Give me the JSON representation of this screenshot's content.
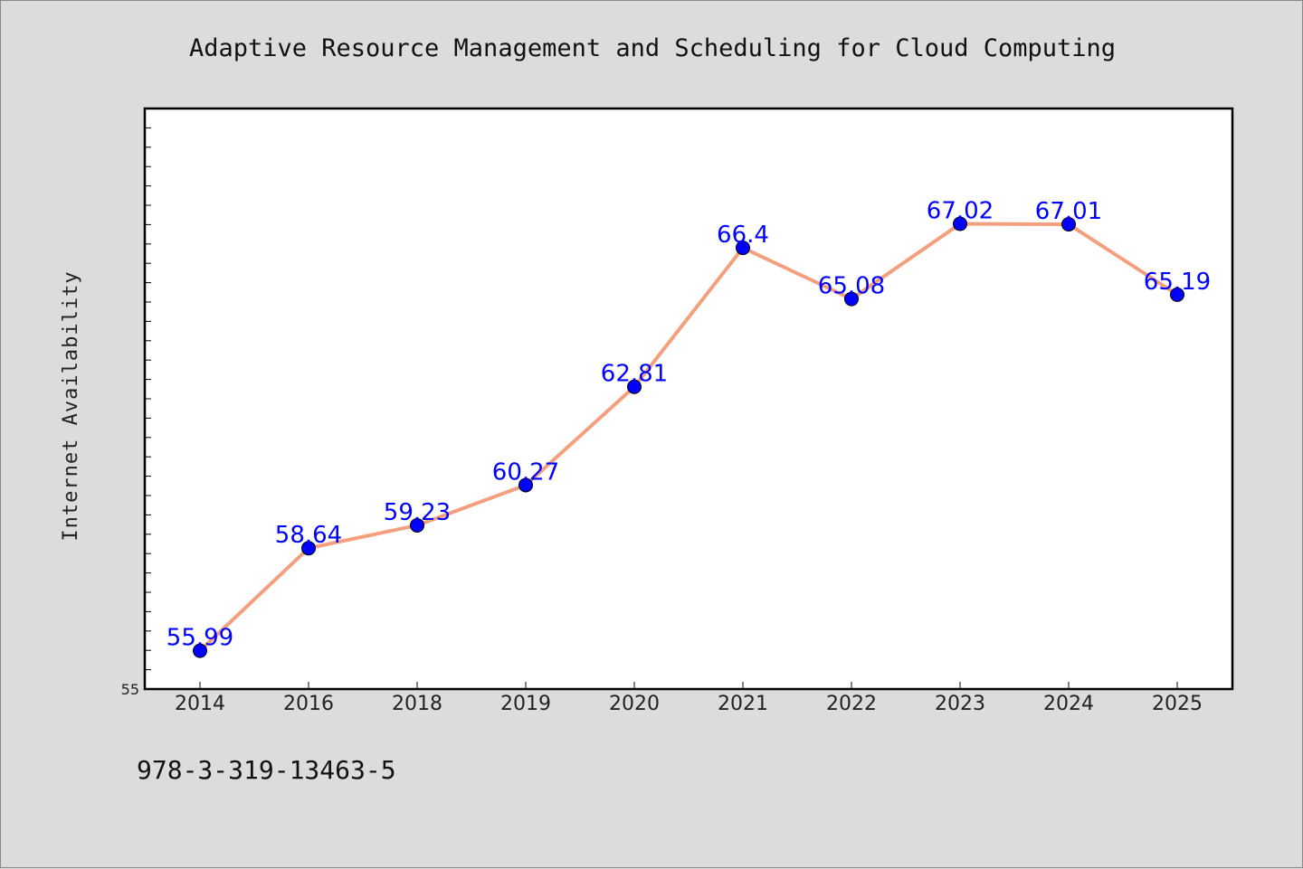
{
  "chart_data": {
    "type": "line",
    "title": "Adaptive Resource Management and Scheduling for Cloud Computing",
    "ylabel": "Internet Availability",
    "xlabel": "",
    "categories": [
      "2014",
      "2016",
      "2018",
      "2019",
      "2020",
      "2021",
      "2022",
      "2023",
      "2024",
      "2025"
    ],
    "series": [
      {
        "values": [
          55.99,
          58.64,
          59.23,
          60.27,
          62.81,
          66.4,
          65.08,
          67.02,
          67.01,
          65.19
        ],
        "data_labels": [
          "55.99",
          "58.64",
          "59.23",
          "60.27",
          "62.81",
          "66.4",
          "65.08",
          "67.02",
          "67.01",
          "65.19"
        ],
        "line_color": "#f4a07e",
        "marker_color": "#0000ff"
      }
    ],
    "ylim": [
      55,
      70
    ],
    "yticks_labeled": [
      "55"
    ],
    "grid": false,
    "legend": "none"
  },
  "footer": {
    "text": "978-3-319-13463-5"
  },
  "colors": {
    "background": "#dcdcdc",
    "plot_area": "#ffffff",
    "line": "#f4a07e",
    "marker": "#0000ff",
    "data_label": "#0000ff"
  }
}
